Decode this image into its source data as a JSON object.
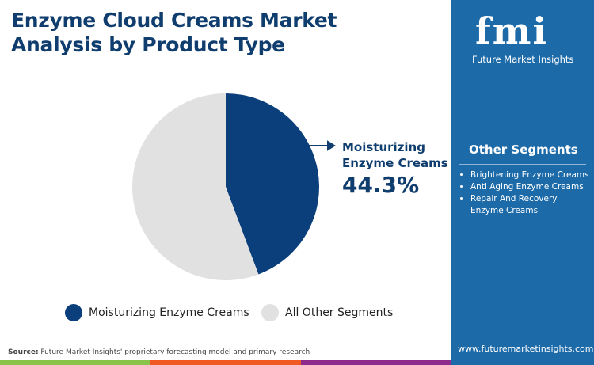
{
  "title_line1": "Enzyme Cloud Creams Market",
  "title_line2": "Analysis by Product Type",
  "logo": {
    "text": "fmi",
    "subtitle": "Future Market Insights"
  },
  "chart_data": {
    "type": "pie",
    "slices": [
      {
        "label": "Moisturizing Enzyme Creams",
        "value": 44.3,
        "color": "#0b3f7c"
      },
      {
        "label": "All Other Segments",
        "value": 55.7,
        "color": "#e1e1e1"
      }
    ],
    "start": "top",
    "direction": "clockwise"
  },
  "callout": {
    "label_line1": "Moisturizing",
    "label_line2": "Enzyme Creams",
    "value": "44.3%"
  },
  "legend": [
    "Moisturizing Enzyme Creams",
    "All Other Segments"
  ],
  "other_segments": {
    "title": "Other Segments",
    "items": [
      "Brightening Enzyme Creams",
      "Anti Aging Enzyme Creams",
      "Repair And Recovery Enzyme Creams"
    ]
  },
  "source_label": "Source:",
  "source_text": " Future Market Insights' proprietary forecasting model and primary research",
  "url": "www.futuremarketinsights.com",
  "colors": {
    "panel": "#1d6aa8",
    "title": "#0f3d6e",
    "bar": [
      "#8bc34a",
      "#f05a22",
      "#8e2a8b",
      "#1d6aa8"
    ]
  }
}
